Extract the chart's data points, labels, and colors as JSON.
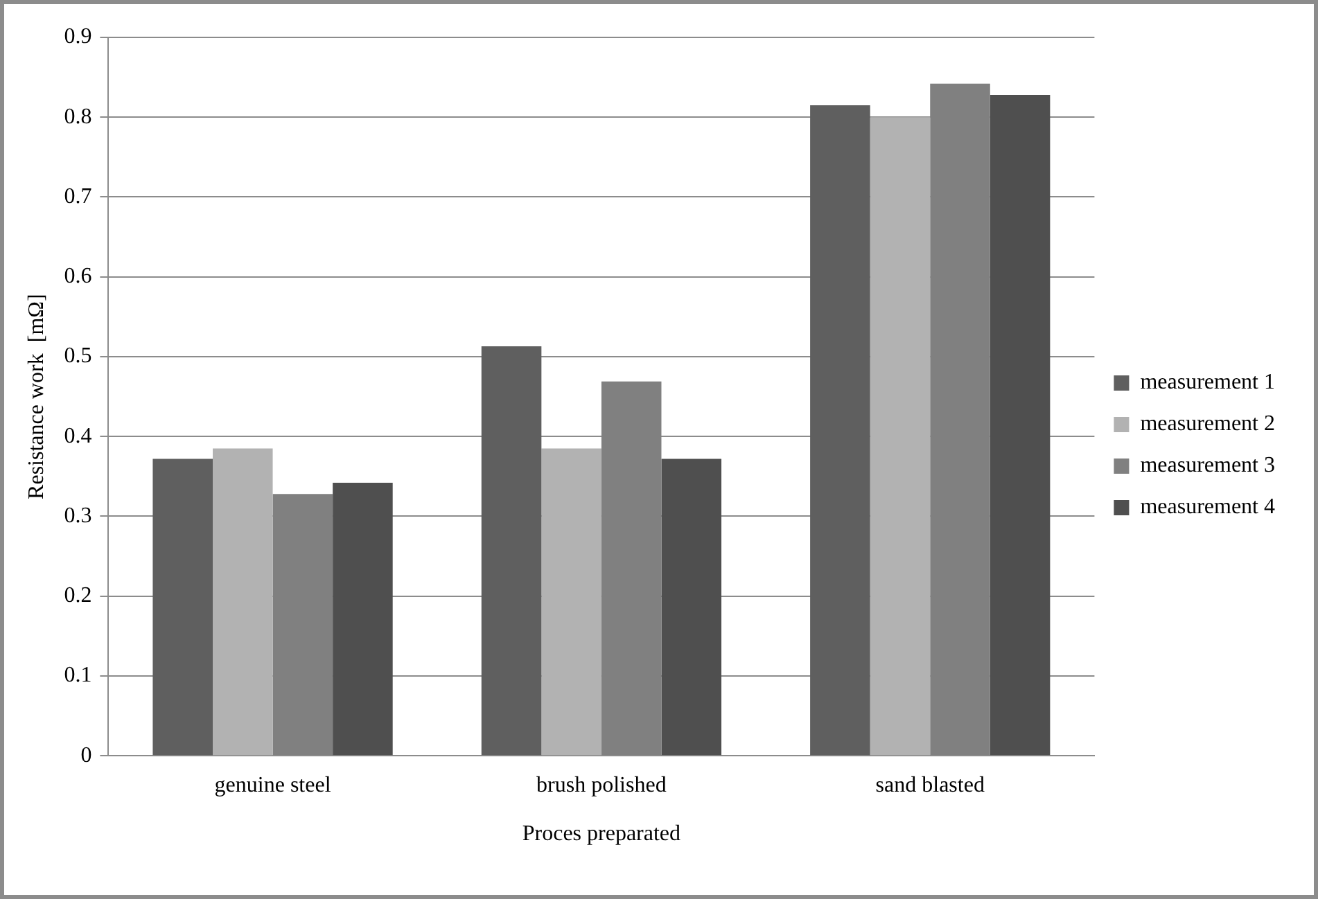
{
  "chart_data": {
    "type": "bar",
    "xlabel": "Proces preparated",
    "ylabel": "Resistance work  [mΩ]",
    "categories": [
      "genuine steel",
      "brush polished",
      "sand blasted"
    ],
    "series": [
      {
        "name": "measurement 1",
        "color": "#5f5f5f",
        "values": [
          0.372,
          0.513,
          0.815
        ]
      },
      {
        "name": "measurement 2",
        "color": "#b2b2b2",
        "values": [
          0.385,
          0.385,
          0.8
        ]
      },
      {
        "name": "measurement 3",
        "color": "#808080",
        "values": [
          0.328,
          0.469,
          0.842
        ]
      },
      {
        "name": "measurement 4",
        "color": "#4f4f4f",
        "values": [
          0.342,
          0.372,
          0.828
        ]
      }
    ],
    "ylim": [
      0,
      0.9
    ],
    "yticks": [
      0,
      0.1,
      0.2,
      0.3,
      0.4,
      0.5,
      0.6,
      0.7,
      0.8,
      0.9
    ],
    "grid": "y",
    "legend": "right"
  }
}
